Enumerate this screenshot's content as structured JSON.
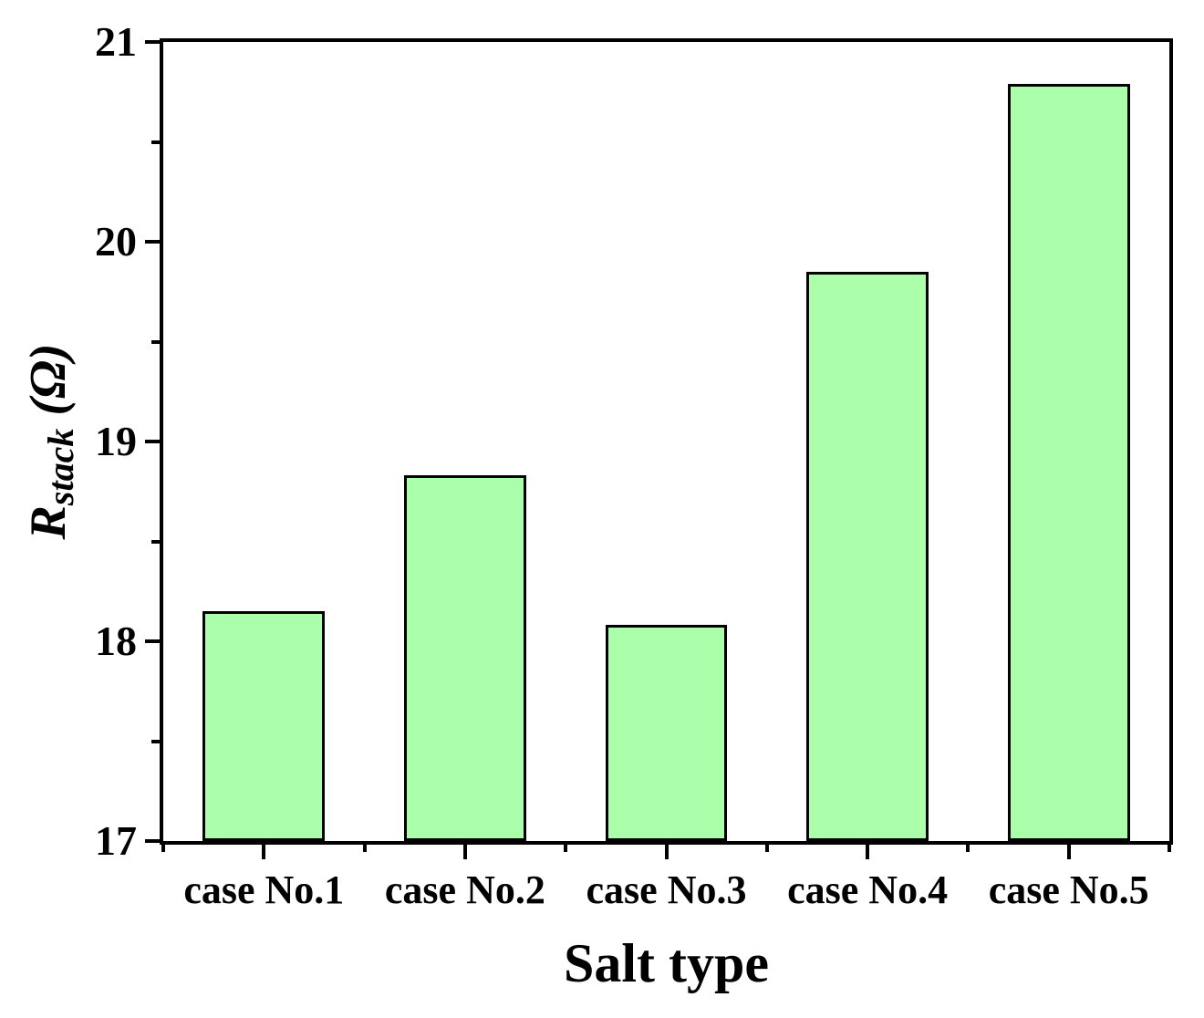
{
  "chart_data": {
    "type": "bar",
    "categories": [
      "case No.1",
      "case No.2",
      "case No.3",
      "case No.4",
      "case No.5"
    ],
    "values": [
      18.15,
      18.83,
      18.08,
      19.85,
      20.79
    ],
    "xlabel": "Salt type",
    "ylabel": "R_stack (Ω)",
    "ylabel_parts": {
      "base": "R",
      "subscript": "stack",
      "suffix": " (Ω)"
    },
    "ylim": [
      17,
      21
    ],
    "yticks": [
      17,
      18,
      19,
      20,
      21
    ],
    "y_minor_ticks": [
      17.5,
      18.5,
      19.5,
      20.5
    ],
    "x_minor_tick_positions": [
      0,
      1,
      2,
      3,
      4,
      5
    ],
    "bar_width_ratio": 0.607,
    "grid": false,
    "legend_position": "none",
    "tick_direction": "out",
    "colors": {
      "bar_fill": "#abffab",
      "bar_border": "#000000",
      "axis": "#000000",
      "text": "#000000"
    }
  }
}
